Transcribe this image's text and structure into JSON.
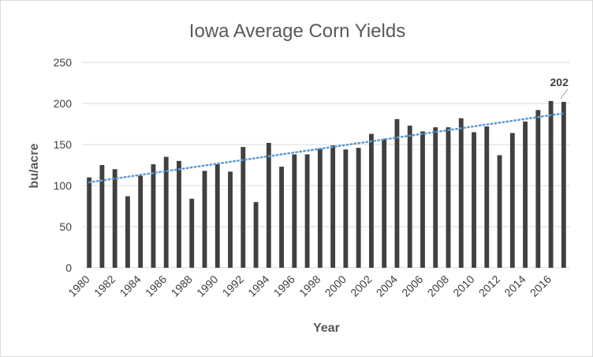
{
  "chart_data": {
    "type": "bar",
    "title": "Iowa Average Corn Yields",
    "xlabel": "Year",
    "ylabel": "bu/acre",
    "ylim": [
      0,
      250
    ],
    "y_ticks": [
      "0",
      "50",
      "100",
      "150",
      "200",
      "250"
    ],
    "x_tick_labels": [
      "1980",
      "1982",
      "1984",
      "1986",
      "1988",
      "1990",
      "1992",
      "1994",
      "1996",
      "1998",
      "2000",
      "2002",
      "2004",
      "2006",
      "2008",
      "2010",
      "2012",
      "2014",
      "2016"
    ],
    "grid": true,
    "categories": [
      "1980",
      "1981",
      "1982",
      "1983",
      "1984",
      "1985",
      "1986",
      "1987",
      "1988",
      "1989",
      "1990",
      "1991",
      "1992",
      "1993",
      "1994",
      "1995",
      "1996",
      "1997",
      "1998",
      "1999",
      "2000",
      "2001",
      "2002",
      "2003",
      "2004",
      "2005",
      "2006",
      "2007",
      "2008",
      "2009",
      "2010",
      "2011",
      "2012",
      "2013",
      "2014",
      "2015",
      "2016",
      "2017"
    ],
    "values": [
      110,
      125,
      120,
      87,
      112,
      126,
      135,
      130,
      84,
      118,
      126,
      117,
      147,
      80,
      152,
      123,
      138,
      138,
      145,
      149,
      144,
      146,
      163,
      157,
      181,
      173,
      166,
      171,
      171,
      182,
      165,
      172,
      137,
      164,
      178,
      192,
      203,
      202
    ],
    "trendline": {
      "type": "linear",
      "start": 104,
      "end": 188,
      "style": "dotted"
    },
    "annotation": {
      "category": "2017",
      "label": "202"
    },
    "colors": {
      "bar": "#404040",
      "trend": "#5b9bd5",
      "grid": "#d9d9d9",
      "text": "#595959"
    }
  }
}
